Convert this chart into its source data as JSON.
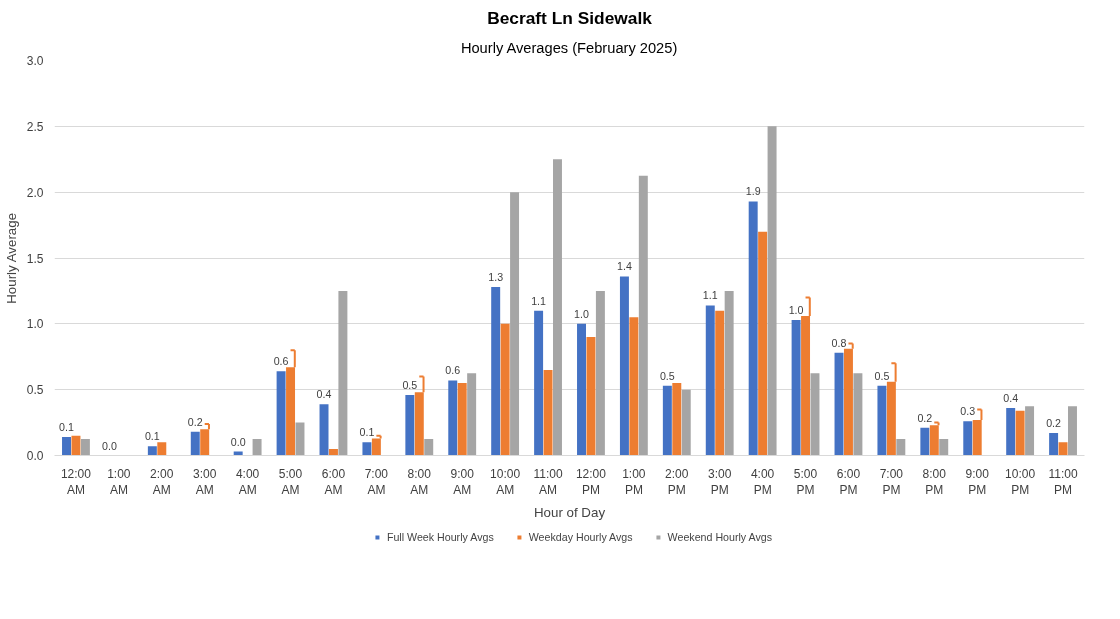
{
  "chart_data": {
    "type": "bar",
    "title": "Becraft Ln Sidewalk",
    "subtitle": "Hourly Averages (February 2025)",
    "xlabel": "Hour of Day",
    "ylabel": "Hourly Average",
    "categories": [
      "12:00\nAM",
      "1:00\nAM",
      "2:00\nAM",
      "3:00\nAM",
      "4:00\nAM",
      "5:00\nAM",
      "6:00\nAM",
      "7:00\nAM",
      "8:00\nAM",
      "9:00\nAM",
      "10:00\nAM",
      "11:00\nAM",
      "12:00\nPM",
      "1:00\nPM",
      "2:00\nPM",
      "3:00\nPM",
      "4:00\nPM",
      "5:00\nPM",
      "6:00\nPM",
      "7:00\nPM",
      "8:00\nPM",
      "9:00\nPM",
      "10:00\nPM",
      "11:00\nPM"
    ],
    "series": [
      {
        "name": "Full Week Hourly Avgs",
        "color": "#4472c4",
        "values": [
          0.14,
          0,
          0.07,
          0.18,
          0.03,
          0.64,
          0.39,
          0.1,
          0.46,
          0.57,
          1.28,
          1.1,
          1.0,
          1.36,
          0.53,
          1.14,
          1.93,
          1.03,
          0.78,
          0.53,
          0.21,
          0.26,
          0.36,
          0.17
        ],
        "value_labels": [
          "0.1",
          "0.0",
          "0.1",
          "0.2",
          "0.0",
          "0.6",
          "0.4",
          "0.1",
          "0.5",
          "0.6",
          "1.3",
          "1.1",
          "1.0",
          "1.4",
          "0.5",
          "1.1",
          "1.9",
          "1.0",
          "0.8",
          "0.5",
          "0.2",
          "0.3",
          "0.4",
          "0.2"
        ]
      },
      {
        "name": "Weekday Hourly Avgs",
        "color": "#ed7d31",
        "values": [
          0.15,
          0,
          0.1,
          0.2,
          0,
          0.67,
          0.05,
          0.13,
          0.48,
          0.55,
          1.0,
          0.65,
          0.9,
          1.05,
          0.55,
          1.1,
          1.7,
          1.06,
          0.81,
          0.56,
          0.23,
          0.27,
          0.34,
          0.1
        ],
        "errors": [
          null,
          null,
          null,
          [
            0.2,
            0.24
          ],
          null,
          [
            0.67,
            0.8
          ],
          null,
          [
            0.13,
            0.15
          ],
          [
            0.48,
            0.6
          ],
          null,
          null,
          null,
          null,
          null,
          null,
          null,
          null,
          [
            1.06,
            1.2
          ],
          [
            0.81,
            0.85
          ],
          [
            0.56,
            0.7
          ],
          [
            0.23,
            0.25
          ],
          [
            0.27,
            0.35
          ],
          null,
          null
        ]
      },
      {
        "name": "Weekend Hourly Avgs",
        "color": "#a5a5a5",
        "values": [
          0.125,
          0,
          0,
          0,
          0.125,
          0.25,
          1.25,
          0,
          0.125,
          0.625,
          2.0,
          2.25,
          1.25,
          2.125,
          0.5,
          1.25,
          2.5,
          0.625,
          0.625,
          0.125,
          0.125,
          0,
          0.375,
          0.375
        ]
      }
    ],
    "ylim": [
      0,
      3.0
    ],
    "yticks": [
      {
        "value": 0,
        "label": "0.0"
      },
      {
        "value": 0.5,
        "label": "0.5"
      },
      {
        "value": 1.0,
        "label": "1.0"
      },
      {
        "value": 1.5,
        "label": "1.5"
      },
      {
        "value": 2.0,
        "label": "2.0"
      },
      {
        "value": 2.5,
        "label": "2.5"
      },
      {
        "value": 3.0,
        "label": "3.0"
      }
    ],
    "grid": "y",
    "legend": "bottom"
  }
}
